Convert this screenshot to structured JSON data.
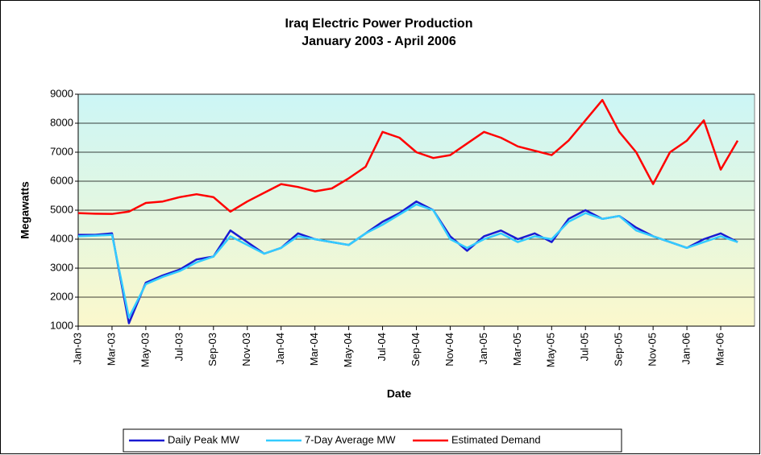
{
  "chart_data": {
    "type": "line",
    "title": "Iraq Electric Power Production",
    "subtitle": "January 2003 - April 2006",
    "x_label": "Date",
    "y_label": "Megawatts",
    "x": [
      "2003-01",
      "2003-02",
      "2003-03",
      "2003-04",
      "2003-05",
      "2003-06",
      "2003-07",
      "2003-08",
      "2003-09",
      "2003-10",
      "2003-11",
      "2003-12",
      "2004-01",
      "2004-02",
      "2004-03",
      "2004-04",
      "2004-05",
      "2004-06",
      "2004-07",
      "2004-08",
      "2004-09",
      "2004-10",
      "2004-11",
      "2004-12",
      "2005-01",
      "2005-02",
      "2005-03",
      "2005-04",
      "2005-05",
      "2005-06",
      "2005-07",
      "2005-08",
      "2005-09",
      "2005-10",
      "2005-11",
      "2005-12",
      "2006-01",
      "2006-02",
      "2006-03",
      "2006-04"
    ],
    "series": [
      {
        "name": "Daily Peak MW",
        "color": "#1a1ad2",
        "values": [
          4150,
          4150,
          4200,
          1100,
          2500,
          2750,
          2950,
          3300,
          3400,
          4300,
          3900,
          3500,
          3700,
          4200,
          4000,
          3900,
          3800,
          4200,
          4600,
          4900,
          5300,
          5000,
          4100,
          3600,
          4100,
          4300,
          4000,
          4200,
          3900,
          4700,
          5000,
          4700,
          4800,
          4400,
          4100,
          3900,
          3700,
          4000,
          4200,
          3900
        ]
      },
      {
        "name": "7-Day Average MW",
        "color": "#33ccff",
        "values": [
          4100,
          4120,
          4150,
          1300,
          2450,
          2700,
          2900,
          3200,
          3400,
          4100,
          3800,
          3500,
          3700,
          4100,
          4000,
          3900,
          3800,
          4200,
          4500,
          4850,
          5200,
          5000,
          4000,
          3700,
          4000,
          4200,
          3900,
          4100,
          4000,
          4600,
          4900,
          4700,
          4800,
          4300,
          4100,
          3900,
          3700,
          3900,
          4100,
          3900
        ]
      },
      {
        "name": "Estimated Demand",
        "color": "#ff0000",
        "values": [
          4900,
          4880,
          4870,
          4950,
          5250,
          5300,
          5450,
          5550,
          5450,
          4950,
          5300,
          5600,
          5900,
          5800,
          5650,
          5750,
          6100,
          6500,
          7700,
          7500,
          7000,
          6800,
          6900,
          7300,
          7700,
          7500,
          7200,
          7050,
          6900,
          7400,
          8100,
          8800,
          7700,
          7000,
          5900,
          7000,
          7400,
          8100,
          6400,
          7400
        ]
      }
    ],
    "xlim": [
      "2003-01",
      "2006-05"
    ],
    "xticks": [
      {
        "value": "2003-01",
        "label": "Jan-03"
      },
      {
        "value": "2003-03",
        "label": "Mar-03"
      },
      {
        "value": "2003-05",
        "label": "May-03"
      },
      {
        "value": "2003-07",
        "label": "Jul-03"
      },
      {
        "value": "2003-09",
        "label": "Sep-03"
      },
      {
        "value": "2003-11",
        "label": "Nov-03"
      },
      {
        "value": "2004-01",
        "label": "Jan-04"
      },
      {
        "value": "2004-03",
        "label": "Mar-04"
      },
      {
        "value": "2004-05",
        "label": "May-04"
      },
      {
        "value": "2004-07",
        "label": "Jul-04"
      },
      {
        "value": "2004-09",
        "label": "Sep-04"
      },
      {
        "value": "2004-11",
        "label": "Nov-04"
      },
      {
        "value": "2005-01",
        "label": "Jan-05"
      },
      {
        "value": "2005-03",
        "label": "Mar-05"
      },
      {
        "value": "2005-05",
        "label": "May-05"
      },
      {
        "value": "2005-07",
        "label": "Jul-05"
      },
      {
        "value": "2005-09",
        "label": "Sep-05"
      },
      {
        "value": "2005-11",
        "label": "Nov-05"
      },
      {
        "value": "2006-01",
        "label": "Jan-06"
      },
      {
        "value": "2006-03",
        "label": "Mar-06"
      }
    ],
    "ylim": [
      1000,
      9000
    ],
    "yticks": [
      1000,
      2000,
      3000,
      4000,
      5000,
      6000,
      7000,
      8000,
      9000
    ],
    "grid": true,
    "legend": "bottom"
  }
}
